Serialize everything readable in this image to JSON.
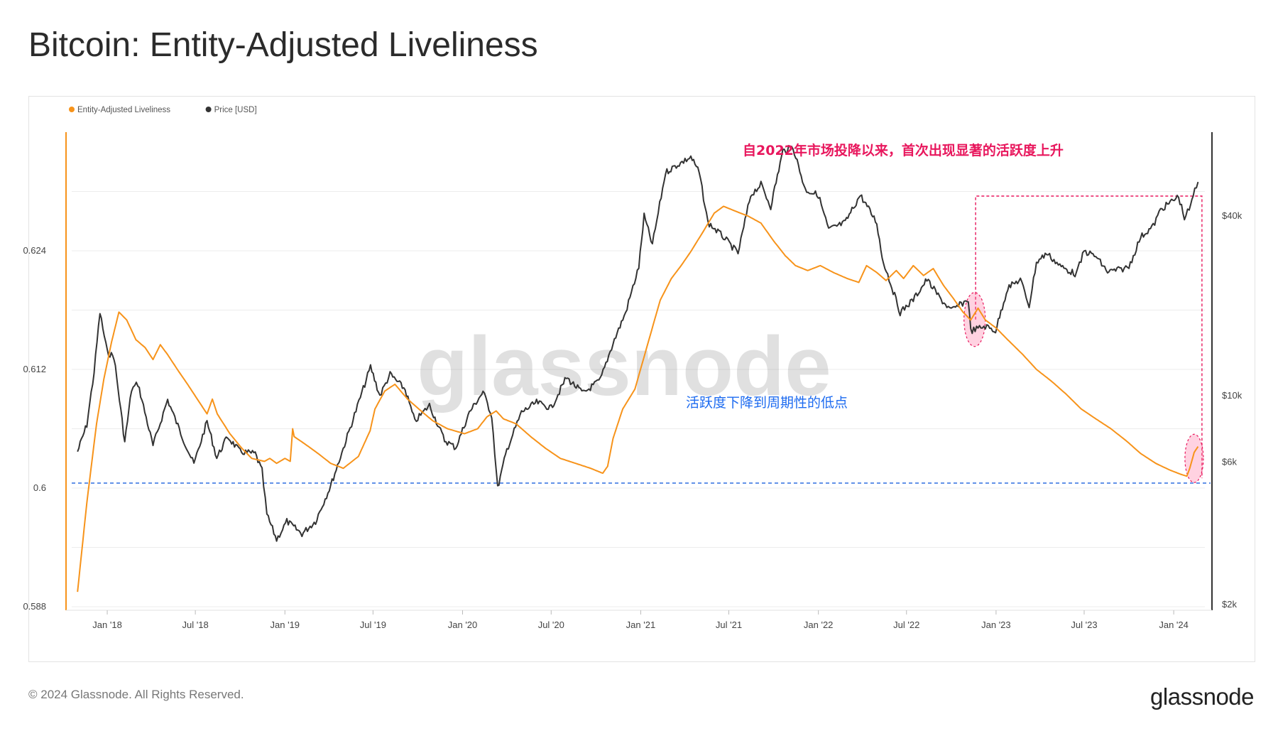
{
  "header": {
    "title": "Bitcoin: Entity-Adjusted Liveliness"
  },
  "footer": {
    "copyright": "© 2024 Glassnode. All Rights Reserved.",
    "logo_text": "glassnode"
  },
  "watermark": "glassnode",
  "chart_data": {
    "type": "line",
    "title": "Bitcoin: Entity-Adjusted Liveliness",
    "x_ticks": [
      "Jan '18",
      "Jul '18",
      "Jan '19",
      "Jul '19",
      "Jan '20",
      "Jul '20",
      "Jan '21",
      "Jul '21",
      "Jan '22",
      "Jul '22",
      "Jan '23",
      "Jul '23",
      "Jan '24"
    ],
    "y_left_ticks": [
      "0.588",
      "0.6",
      "0.612",
      "0.624"
    ],
    "y_right_ticks": [
      "$2k",
      "$6k",
      "$10k",
      "$40k"
    ],
    "y_left_range": [
      0.588,
      0.636
    ],
    "y_right_scale": "log",
    "legend_position": "top-left",
    "grid": true,
    "series": [
      {
        "name": "Entity-Adjusted Liveliness",
        "axis": "left",
        "color": "#f7931a",
        "points": [
          [
            "2017-11-01",
            0.5895
          ],
          [
            "2017-11-20",
            0.5985
          ],
          [
            "2017-12-10",
            0.6065
          ],
          [
            "2017-12-25",
            0.611
          ],
          [
            "2018-01-10",
            0.6148
          ],
          [
            "2018-01-25",
            0.6178
          ],
          [
            "2018-02-10",
            0.617
          ],
          [
            "2018-03-01",
            0.615
          ],
          [
            "2018-03-20",
            0.6142
          ],
          [
            "2018-04-05",
            0.613
          ],
          [
            "2018-04-20",
            0.6145
          ],
          [
            "2018-05-05",
            0.6135
          ],
          [
            "2018-05-25",
            0.612
          ],
          [
            "2018-06-15",
            0.6105
          ],
          [
            "2018-07-05",
            0.609
          ],
          [
            "2018-07-25",
            0.6075
          ],
          [
            "2018-08-05",
            0.609
          ],
          [
            "2018-08-15",
            0.6075
          ],
          [
            "2018-09-10",
            0.6055
          ],
          [
            "2018-10-05",
            0.604
          ],
          [
            "2018-10-25",
            0.603
          ],
          [
            "2018-11-20",
            0.6027
          ],
          [
            "2018-12-01",
            0.603
          ],
          [
            "2018-12-15",
            0.6025
          ],
          [
            "2019-01-01",
            0.603
          ],
          [
            "2019-01-12",
            0.6027
          ],
          [
            "2019-01-17",
            0.606
          ],
          [
            "2019-01-20",
            0.6052
          ],
          [
            "2019-02-10",
            0.6045
          ],
          [
            "2019-03-10",
            0.6035
          ],
          [
            "2019-04-05",
            0.6025
          ],
          [
            "2019-05-01",
            0.602
          ],
          [
            "2019-06-01",
            0.6032
          ],
          [
            "2019-06-25",
            0.6058
          ],
          [
            "2019-07-05",
            0.608
          ],
          [
            "2019-07-25",
            0.6098
          ],
          [
            "2019-08-15",
            0.6105
          ],
          [
            "2019-09-10",
            0.609
          ],
          [
            "2019-10-10",
            0.6077
          ],
          [
            "2019-11-01",
            0.6068
          ],
          [
            "2019-12-01",
            0.606
          ],
          [
            "2020-01-05",
            0.6055
          ],
          [
            "2020-02-01",
            0.606
          ],
          [
            "2020-02-20",
            0.6072
          ],
          [
            "2020-03-10",
            0.6078
          ],
          [
            "2020-03-25",
            0.607
          ],
          [
            "2020-04-20",
            0.6065
          ],
          [
            "2020-05-20",
            0.6052
          ],
          [
            "2020-06-20",
            0.604
          ],
          [
            "2020-07-20",
            0.603
          ],
          [
            "2020-08-20",
            0.6025
          ],
          [
            "2020-09-20",
            0.602
          ],
          [
            "2020-10-15",
            0.6015
          ],
          [
            "2020-10-25",
            0.6022
          ],
          [
            "2020-11-05",
            0.605
          ],
          [
            "2020-11-25",
            0.608
          ],
          [
            "2020-12-20",
            0.61
          ],
          [
            "2021-01-15",
            0.6145
          ],
          [
            "2021-02-10",
            0.619
          ],
          [
            "2021-03-05",
            0.6212
          ],
          [
            "2021-03-25",
            0.6225
          ],
          [
            "2021-04-15",
            0.624
          ],
          [
            "2021-05-10",
            0.626
          ],
          [
            "2021-06-01",
            0.6278
          ],
          [
            "2021-06-20",
            0.6285
          ],
          [
            "2021-07-15",
            0.628
          ],
          [
            "2021-08-10",
            0.6275
          ],
          [
            "2021-09-05",
            0.6268
          ],
          [
            "2021-10-01",
            0.625
          ],
          [
            "2021-10-25",
            0.6235
          ],
          [
            "2021-11-15",
            0.6225
          ],
          [
            "2021-12-10",
            0.622
          ],
          [
            "2022-01-05",
            0.6225
          ],
          [
            "2022-02-01",
            0.6218
          ],
          [
            "2022-03-01",
            0.6212
          ],
          [
            "2022-03-25",
            0.6208
          ],
          [
            "2022-04-10",
            0.6225
          ],
          [
            "2022-05-01",
            0.6218
          ],
          [
            "2022-05-20",
            0.621
          ],
          [
            "2022-06-10",
            0.622
          ],
          [
            "2022-06-25",
            0.6212
          ],
          [
            "2022-07-15",
            0.6225
          ],
          [
            "2022-08-05",
            0.6215
          ],
          [
            "2022-08-25",
            0.6222
          ],
          [
            "2022-09-15",
            0.6205
          ],
          [
            "2022-10-05",
            0.6192
          ],
          [
            "2022-10-25",
            0.6178
          ],
          [
            "2022-11-10",
            0.617
          ],
          [
            "2022-11-25",
            0.6182
          ],
          [
            "2022-12-10",
            0.617
          ],
          [
            "2023-01-01",
            0.6162
          ],
          [
            "2023-01-25",
            0.615
          ],
          [
            "2023-02-25",
            0.6135
          ],
          [
            "2023-03-25",
            0.612
          ],
          [
            "2023-04-25",
            0.6108
          ],
          [
            "2023-05-25",
            0.6095
          ],
          [
            "2023-06-25",
            0.608
          ],
          [
            "2023-07-25",
            0.607
          ],
          [
            "2023-08-25",
            0.606
          ],
          [
            "2023-09-25",
            0.6048
          ],
          [
            "2023-10-25",
            0.6035
          ],
          [
            "2023-11-25",
            0.6025
          ],
          [
            "2023-12-25",
            0.6018
          ],
          [
            "2024-01-15",
            0.6014
          ],
          [
            "2024-01-28",
            0.6012
          ],
          [
            "2024-02-03",
            0.602
          ],
          [
            "2024-02-12",
            0.6036
          ],
          [
            "2024-02-20",
            0.6042
          ]
        ]
      },
      {
        "name": "Price [USD]",
        "axis": "right",
        "color": "#333333",
        "points": [
          [
            "2017-11-01",
            6500
          ],
          [
            "2017-11-20",
            8000
          ],
          [
            "2017-12-05",
            12000
          ],
          [
            "2017-12-17",
            19000
          ],
          [
            "2018-01-01",
            14000
          ],
          [
            "2018-01-15",
            13500
          ],
          [
            "2018-02-06",
            7000
          ],
          [
            "2018-02-20",
            10500
          ],
          [
            "2018-03-05",
            11000
          ],
          [
            "2018-04-05",
            6800
          ],
          [
            "2018-05-05",
            9700
          ],
          [
            "2018-06-01",
            7500
          ],
          [
            "2018-06-28",
            5900
          ],
          [
            "2018-07-25",
            8200
          ],
          [
            "2018-08-14",
            6200
          ],
          [
            "2018-09-05",
            7300
          ],
          [
            "2018-10-01",
            6500
          ],
          [
            "2018-11-01",
            6400
          ],
          [
            "2018-11-15",
            5600
          ],
          [
            "2018-11-25",
            4000
          ],
          [
            "2018-12-15",
            3300
          ],
          [
            "2019-01-05",
            3800
          ],
          [
            "2019-02-05",
            3450
          ],
          [
            "2019-03-05",
            3800
          ],
          [
            "2019-04-05",
            5000
          ],
          [
            "2019-05-15",
            7800
          ],
          [
            "2019-06-26",
            12500
          ],
          [
            "2019-07-15",
            10000
          ],
          [
            "2019-08-05",
            11800
          ],
          [
            "2019-09-05",
            10500
          ],
          [
            "2019-09-25",
            8200
          ],
          [
            "2019-10-25",
            9300
          ],
          [
            "2019-11-25",
            7100
          ],
          [
            "2019-12-18",
            6700
          ],
          [
            "2020-01-15",
            8800
          ],
          [
            "2020-02-12",
            10300
          ],
          [
            "2020-03-01",
            8600
          ],
          [
            "2020-03-13",
            4900
          ],
          [
            "2020-04-01",
            6600
          ],
          [
            "2020-05-01",
            8800
          ],
          [
            "2020-06-01",
            9500
          ],
          [
            "2020-07-01",
            9100
          ],
          [
            "2020-08-01",
            11500
          ],
          [
            "2020-09-05",
            10200
          ],
          [
            "2020-10-10",
            11300
          ],
          [
            "2020-11-05",
            15000
          ],
          [
            "2020-12-01",
            19000
          ],
          [
            "2020-12-28",
            27000
          ],
          [
            "2021-01-08",
            40000
          ],
          [
            "2021-01-25",
            32000
          ],
          [
            "2021-02-21",
            56000
          ],
          [
            "2021-03-15",
            59000
          ],
          [
            "2021-04-14",
            63000
          ],
          [
            "2021-05-01",
            56000
          ],
          [
            "2021-05-19",
            38000
          ],
          [
            "2021-06-20",
            34000
          ],
          [
            "2021-07-20",
            30000
          ],
          [
            "2021-08-15",
            47000
          ],
          [
            "2021-09-05",
            51000
          ],
          [
            "2021-09-25",
            43000
          ],
          [
            "2021-10-20",
            66000
          ],
          [
            "2021-11-10",
            68000
          ],
          [
            "2021-12-05",
            49000
          ],
          [
            "2022-01-01",
            47000
          ],
          [
            "2022-01-22",
            36000
          ],
          [
            "2022-02-25",
            38000
          ],
          [
            "2022-03-28",
            47000
          ],
          [
            "2022-05-01",
            38000
          ],
          [
            "2022-05-12",
            29000
          ],
          [
            "2022-06-18",
            19000
          ],
          [
            "2022-07-15",
            21000
          ],
          [
            "2022-08-12",
            24500
          ],
          [
            "2022-09-10",
            21000
          ],
          [
            "2022-10-01",
            19300
          ],
          [
            "2022-11-05",
            21000
          ],
          [
            "2022-11-10",
            16500
          ],
          [
            "2022-12-10",
            17100
          ],
          [
            "2022-12-31",
            16500
          ],
          [
            "2023-01-25",
            23000
          ],
          [
            "2023-02-20",
            24500
          ],
          [
            "2023-03-10",
            20000
          ],
          [
            "2023-03-25",
            28000
          ],
          [
            "2023-04-15",
            30000
          ],
          [
            "2023-05-15",
            27000
          ],
          [
            "2023-06-15",
            25500
          ],
          [
            "2023-07-01",
            30500
          ],
          [
            "2023-07-25",
            29300
          ],
          [
            "2023-08-18",
            26000
          ],
          [
            "2023-09-15",
            26500
          ],
          [
            "2023-10-01",
            27000
          ],
          [
            "2023-10-25",
            34000
          ],
          [
            "2023-11-20",
            37000
          ],
          [
            "2023-12-05",
            42000
          ],
          [
            "2024-01-11",
            46500
          ],
          [
            "2024-01-23",
            39500
          ],
          [
            "2024-02-05",
            43000
          ],
          [
            "2024-02-10",
            47000
          ],
          [
            "2024-02-20",
            52000
          ]
        ]
      }
    ],
    "annotations": [
      {
        "text": "自2022年市场投降以来，首次出现显著的活跃度上升",
        "color": "#e8175d"
      },
      {
        "text": "活跃度下降到周期性的低点",
        "color": "#1d6bf0"
      }
    ],
    "reference_line": {
      "value": 0.6005,
      "color": "#2f6fe0"
    }
  },
  "legend": {
    "items": [
      {
        "label": "Entity-Adjusted Liveliness",
        "color": "#f7931a"
      },
      {
        "label": "Price [USD]",
        "color": "#333333"
      }
    ]
  }
}
